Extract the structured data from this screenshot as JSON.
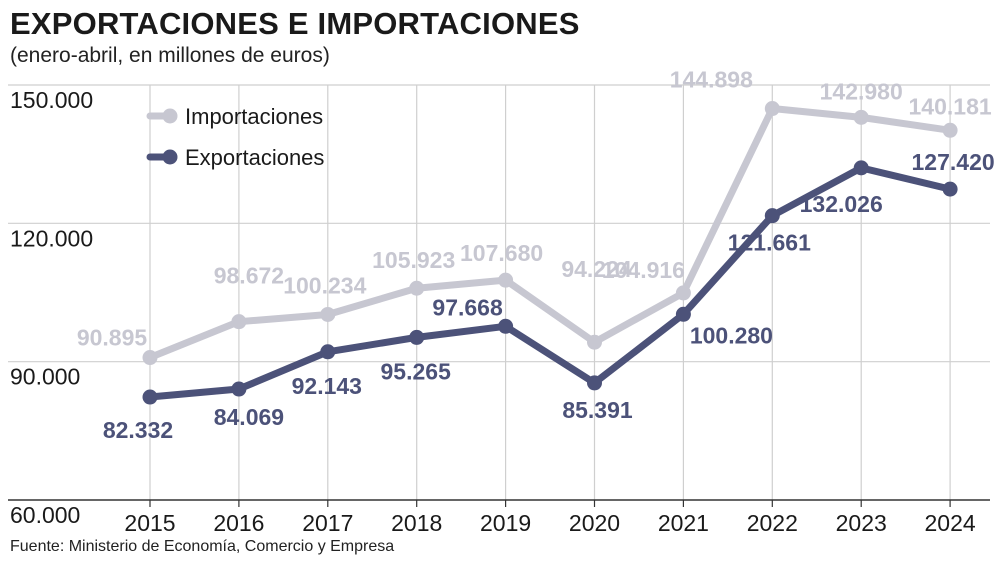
{
  "title": "EXPORTACIONES E IMPORTACIONES",
  "subtitle": "(enero-abril, en millones de euros)",
  "source": "Fuente: Ministerio de Economía, Comercio y Empresa",
  "colors": {
    "importaciones": "#c7c7d1",
    "exportaciones": "#4c5279",
    "grid": "#cfcfcf",
    "axis": "#333333"
  },
  "chart_data": {
    "type": "line",
    "title": "EXPORTACIONES E IMPORTACIONES",
    "subtitle": "(enero-abril, en millones de euros)",
    "x": [
      "2015",
      "2016",
      "2017",
      "2018",
      "2019",
      "2020",
      "2021",
      "2022",
      "2023",
      "2024"
    ],
    "ylim": [
      60000,
      150000
    ],
    "yticks": [
      60000,
      90000,
      120000,
      150000
    ],
    "ytick_labels": [
      "60.000",
      "90.000",
      "120.000",
      "150.000"
    ],
    "grid": true,
    "legend": "top-left",
    "series": [
      {
        "name": "Importaciones",
        "values": [
          90895,
          98672,
          100234,
          105923,
          107680,
          94224,
          104916,
          144898,
          142980,
          140181
        ],
        "labels": [
          "90.895",
          "98.672",
          "100.234",
          "105.923",
          "107.680",
          "94.224",
          "104.916",
          "144.898",
          "142.980",
          "140.181"
        ]
      },
      {
        "name": "Exportaciones",
        "values": [
          82332,
          84069,
          92143,
          95265,
          97668,
          85391,
          100280,
          121661,
          132026,
          127420
        ],
        "labels": [
          "82.332",
          "84.069",
          "92.143",
          "95.265",
          "97.668",
          "85.391",
          "100.280",
          "121.661",
          "132.026",
          "127.420"
        ]
      }
    ]
  }
}
